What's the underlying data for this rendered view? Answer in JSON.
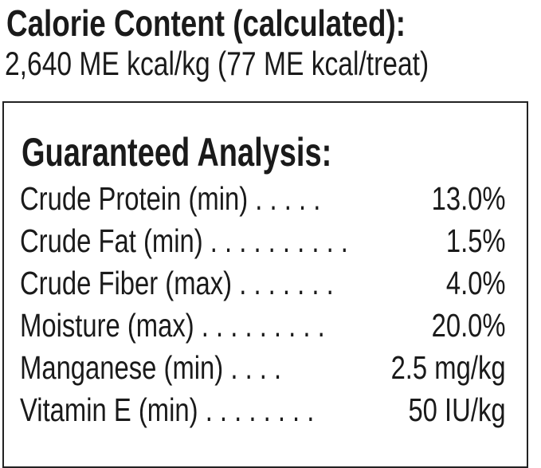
{
  "calorie": {
    "title": "Calorie Content (calculated):",
    "value": "2,640 ME kcal/kg (77 ME kcal/treat)"
  },
  "analysis": {
    "title": "Guaranteed Analysis:",
    "rows": [
      {
        "label": "Crude Protein (min) . . . . .",
        "value": "13.0%"
      },
      {
        "label": "Crude Fat (min) . . . . . . . . . .",
        "value": "1.5%"
      },
      {
        "label": "Crude Fiber (max) . . . . . . .",
        "value": "4.0%"
      },
      {
        "label": "Moisture (max) . . . . . . . . .",
        "value": "20.0%"
      },
      {
        "label": "Manganese (min) . . . .",
        "value": "2.5 mg/kg"
      },
      {
        "label": "Vitamin E (min) . . . . . . . .",
        "value": "50 IU/kg"
      }
    ]
  }
}
